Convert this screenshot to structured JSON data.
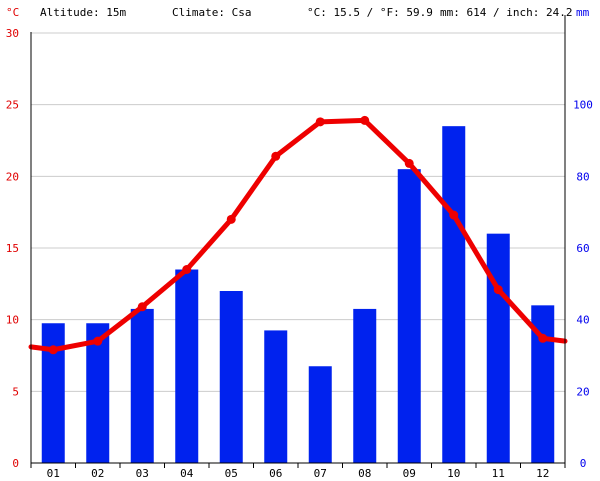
{
  "header": {
    "altitude": "Altitude: 15m",
    "climate": "Climate: Csa",
    "temp_summary": "°C: 15.5 / °F: 59.9",
    "precip_summary": "mm: 614 / inch: 24.2",
    "left_unit": "°C",
    "right_unit": "mm"
  },
  "colors": {
    "temperature": "#ee0000",
    "precipitation": "#0022ee",
    "grid": "#cccccc",
    "left_axis_text": "#e00000",
    "right_axis_text": "#0000ee"
  },
  "chart_data": {
    "type": "bar+line",
    "categories": [
      "01",
      "02",
      "03",
      "04",
      "05",
      "06",
      "07",
      "08",
      "09",
      "10",
      "11",
      "12"
    ],
    "series": [
      {
        "type": "bar",
        "axis": "right",
        "unit": "mm",
        "values": [
          39,
          39,
          43,
          54,
          48,
          37,
          27,
          43,
          82,
          94,
          64,
          44
        ]
      },
      {
        "type": "line",
        "axis": "left",
        "unit": "°C",
        "values": [
          7.9,
          8.5,
          10.9,
          13.5,
          17.0,
          21.4,
          23.8,
          23.9,
          20.9,
          17.3,
          12.1,
          8.7
        ]
      }
    ],
    "y_left": {
      "label": "°C",
      "range": [
        0,
        30
      ],
      "ticks": [
        0,
        5,
        10,
        15,
        20,
        25,
        30
      ]
    },
    "y_right": {
      "label": "mm",
      "range": [
        0,
        120
      ],
      "ticks": [
        0,
        20,
        40,
        60,
        80,
        100
      ]
    },
    "grid": true,
    "legend": "none"
  }
}
